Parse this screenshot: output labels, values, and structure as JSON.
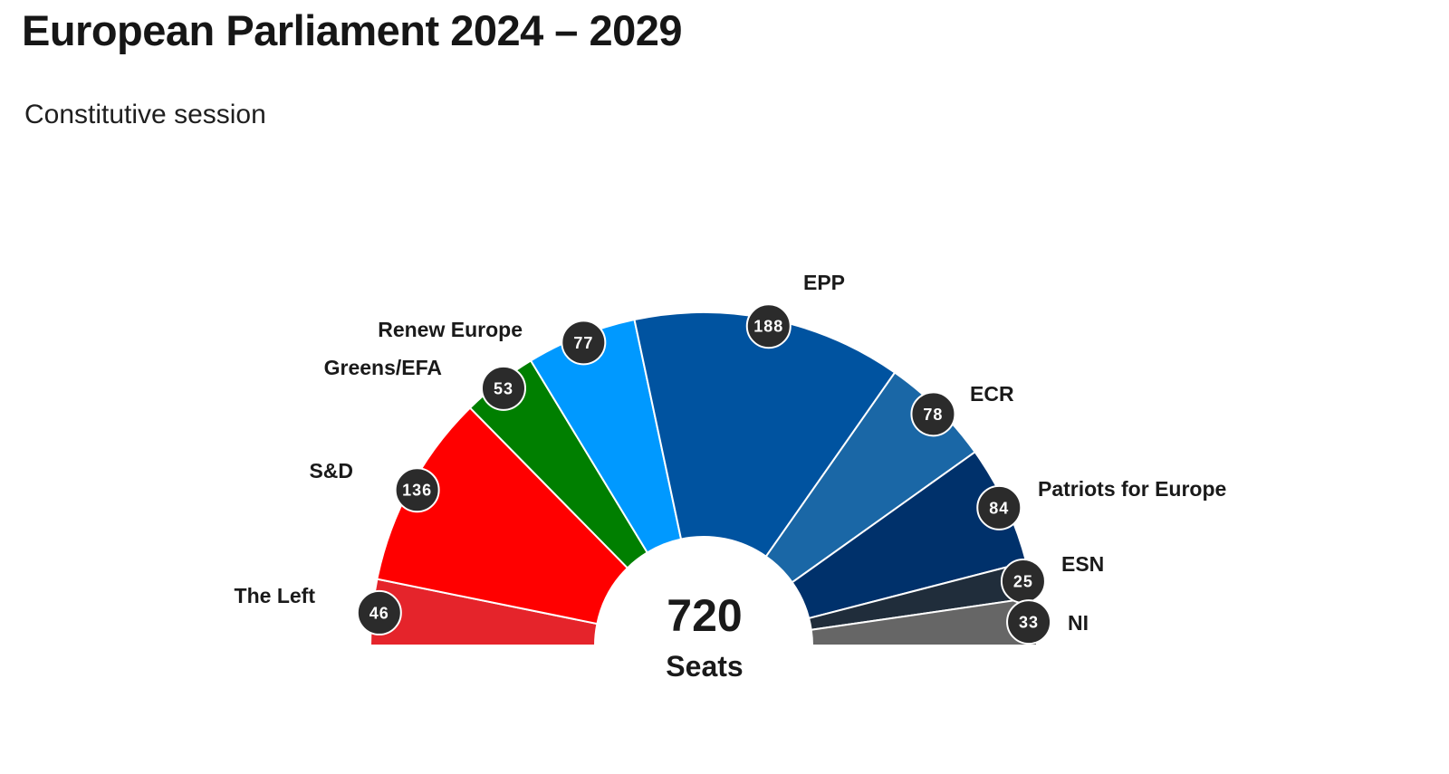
{
  "page": {
    "title": "European Parliament 2024 – 2029",
    "subtitle": "Constitutive session"
  },
  "chart_data": {
    "type": "pie",
    "variant": "semicircle parliament (hemicycle) chart",
    "title": "European Parliament 2024 – 2029",
    "subtitle": "Constitutive session",
    "total": {
      "value": 720,
      "label": "Seats"
    },
    "series": [
      {
        "name": "The Left",
        "value": 46,
        "color": "#E5242B"
      },
      {
        "name": "S&D",
        "value": 136,
        "color": "#FF0000"
      },
      {
        "name": "Greens/EFA",
        "value": 53,
        "color": "#007F00"
      },
      {
        "name": "Renew Europe",
        "value": 77,
        "color": "#0099FF"
      },
      {
        "name": "EPP",
        "value": 188,
        "color": "#0053A0"
      },
      {
        "name": "ECR",
        "value": 78,
        "color": "#1A67A6"
      },
      {
        "name": "Patriots for Europe",
        "value": 84,
        "color": "#00316B"
      },
      {
        "name": "ESN",
        "value": 25,
        "color": "#202D3B"
      },
      {
        "name": "NI",
        "value": 33,
        "color": "#666666"
      }
    ],
    "badge_color": "#2B2B2B",
    "legend": "labels placed next to each segment"
  }
}
